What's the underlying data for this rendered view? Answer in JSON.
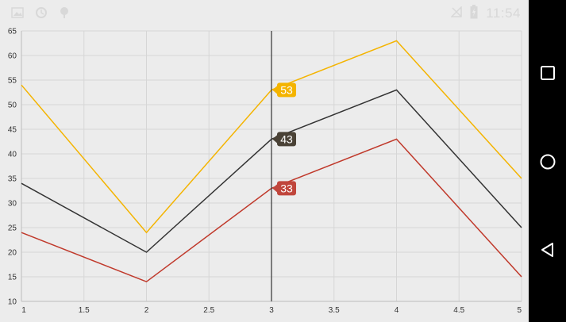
{
  "status_bar": {
    "time": "11:54",
    "left_icons": [
      "image-icon",
      "sync-icon",
      "android-icon"
    ],
    "right_icons": [
      "no-signal-icon",
      "battery-icon"
    ]
  },
  "navigation_bar": {
    "buttons": [
      "recent-apps",
      "home",
      "back"
    ]
  },
  "chart_data": {
    "type": "line",
    "x": [
      1,
      2,
      3,
      4,
      5
    ],
    "series": [
      {
        "values": [
          54,
          24,
          53,
          63,
          35
        ],
        "color": "#f4b400"
      },
      {
        "values": [
          34,
          20,
          43,
          53,
          25
        ],
        "color": "#333333"
      },
      {
        "values": [
          24,
          14,
          33,
          43,
          15
        ],
        "color": "#c0392b"
      }
    ],
    "xlim": [
      1,
      5
    ],
    "ylim": [
      10,
      65
    ],
    "x_ticks": [
      "1",
      "1.5",
      "2",
      "2.5",
      "3",
      "3.5",
      "4",
      "4.5",
      "5"
    ],
    "y_ticks": [
      "10",
      "15",
      "20",
      "25",
      "30",
      "35",
      "40",
      "45",
      "50",
      "55",
      "60",
      "65"
    ],
    "grid": true,
    "trackball": {
      "x": 3,
      "labels": [
        {
          "series": 0,
          "text": "53",
          "color": "#f4b400"
        },
        {
          "series": 1,
          "text": "43",
          "color": "#4a4236"
        },
        {
          "series": 2,
          "text": "33",
          "color": "#c0463c"
        }
      ]
    }
  }
}
